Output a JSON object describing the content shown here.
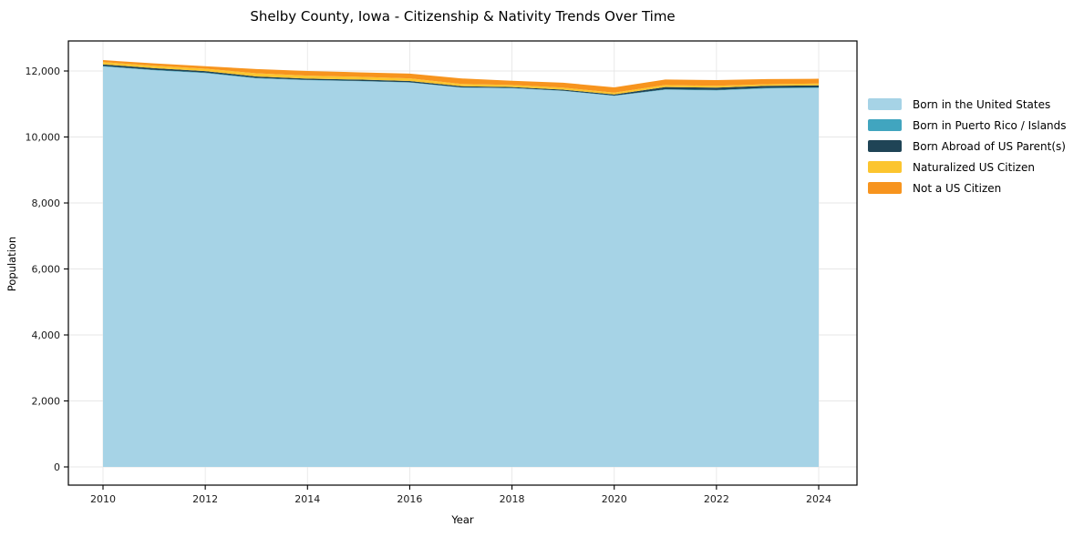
{
  "chart_data": {
    "type": "area",
    "stacked": true,
    "title": "Shelby County, Iowa - Citizenship & Nativity Trends Over Time",
    "xlabel": "Year",
    "ylabel": "Population",
    "x": [
      2010,
      2011,
      2012,
      2013,
      2014,
      2015,
      2016,
      2017,
      2018,
      2019,
      2020,
      2021,
      2022,
      2023,
      2024
    ],
    "series": [
      {
        "name": "Born in the United States",
        "color": "#a6d3e6",
        "values": [
          12135,
          12020,
          11935,
          11775,
          11720,
          11690,
          11650,
          11495,
          11475,
          11395,
          11245,
          11430,
          11410,
          11470,
          11485
        ]
      },
      {
        "name": "Born in Puerto Rico / Islands",
        "color": "#41a5bf",
        "values": [
          15,
          15,
          15,
          15,
          10,
          10,
          10,
          10,
          10,
          10,
          10,
          15,
          15,
          20,
          20
        ]
      },
      {
        "name": "Born Abroad of US Parent(s)",
        "color": "#1f4456",
        "values": [
          50,
          50,
          45,
          45,
          40,
          40,
          35,
          35,
          30,
          30,
          35,
          70,
          70,
          60,
          60
        ]
      },
      {
        "name": "Naturalized US Citizen",
        "color": "#fcc52f",
        "values": [
          70,
          75,
          75,
          95,
          90,
          85,
          80,
          70,
          60,
          60,
          55,
          60,
          55,
          50,
          55
        ]
      },
      {
        "name": "Not a US Citizen",
        "color": "#f7941e",
        "values": [
          60,
          70,
          75,
          130,
          140,
          135,
          145,
          165,
          130,
          150,
          160,
          165,
          175,
          155,
          145
        ]
      }
    ],
    "stacked_totals": [
      12330,
      12230,
      12145,
      12060,
      12000,
      11960,
      11920,
      11775,
      11705,
      11645,
      11505,
      11740,
      11725,
      11755,
      11765
    ],
    "x_ticks": [
      2010,
      2012,
      2014,
      2016,
      2018,
      2020,
      2022,
      2024
    ],
    "y_ticks": [
      0,
      2000,
      4000,
      6000,
      8000,
      10000,
      12000
    ],
    "xlim": [
      2009.32,
      2024.75
    ],
    "ylim": [
      -550,
      12910
    ],
    "grid": true,
    "grid_color": "#e7e7e7",
    "frame_color": "#000000",
    "legend_position": "right"
  }
}
